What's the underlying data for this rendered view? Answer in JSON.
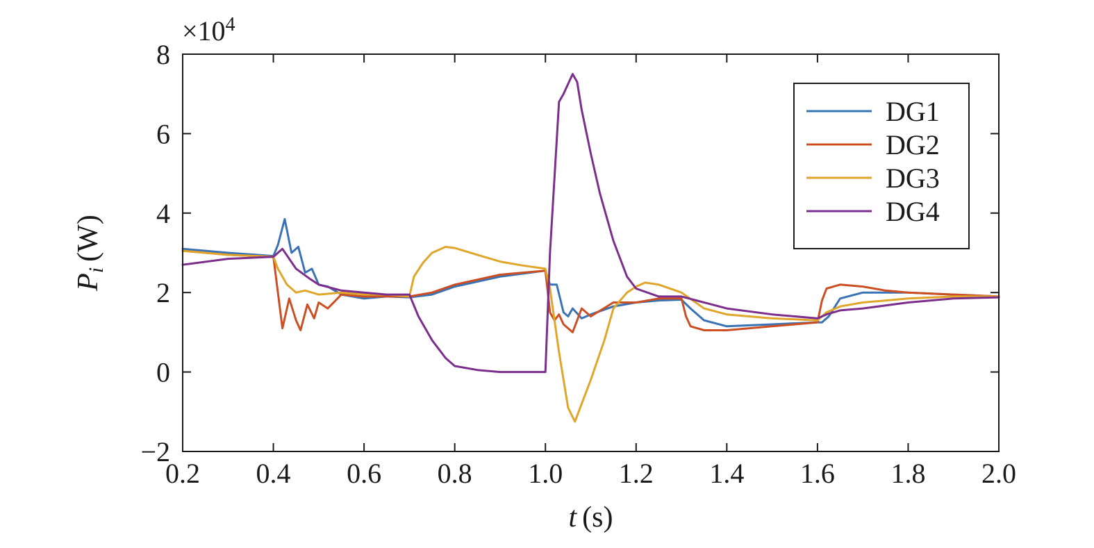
{
  "chart_data": {
    "type": "line",
    "title": "",
    "xlabel": {
      "symbol": "t",
      "unit": "(s)"
    },
    "ylabel": {
      "symbol": "P",
      "subscript": "i",
      "unit": "(W)"
    },
    "y_multiplier": {
      "base": "×10",
      "exponent": "4"
    },
    "xlim": [
      0.2,
      2.0
    ],
    "ylim": [
      -2,
      8
    ],
    "x_ticks": [
      0.2,
      0.4,
      0.6,
      0.8,
      1.0,
      1.2,
      1.4,
      1.6,
      1.8,
      2.0
    ],
    "x_tick_labels": [
      "0.2",
      "0.4",
      "0.6",
      "0.8",
      "1.0",
      "1.2",
      "1.4",
      "1.6",
      "1.8",
      "2.0"
    ],
    "y_ticks": [
      -2,
      0,
      2,
      4,
      6,
      8
    ],
    "y_tick_labels": [
      "−2",
      "0",
      "2",
      "4",
      "6",
      "8"
    ],
    "grid": false,
    "legend_position": "top-right",
    "series": [
      {
        "name": "DG1",
        "color": "#3a73b5",
        "points": [
          [
            0.2,
            3.1
          ],
          [
            0.3,
            3.0
          ],
          [
            0.4,
            2.92
          ],
          [
            0.41,
            3.2
          ],
          [
            0.425,
            3.85
          ],
          [
            0.44,
            3.0
          ],
          [
            0.455,
            3.15
          ],
          [
            0.47,
            2.5
          ],
          [
            0.485,
            2.6
          ],
          [
            0.5,
            2.2
          ],
          [
            0.52,
            2.15
          ],
          [
            0.55,
            1.95
          ],
          [
            0.6,
            1.85
          ],
          [
            0.65,
            1.9
          ],
          [
            0.7,
            1.88
          ],
          [
            0.75,
            1.95
          ],
          [
            0.8,
            2.15
          ],
          [
            0.9,
            2.4
          ],
          [
            1.0,
            2.55
          ],
          [
            1.01,
            2.2
          ],
          [
            1.025,
            2.2
          ],
          [
            1.04,
            1.5
          ],
          [
            1.05,
            1.4
          ],
          [
            1.06,
            1.6
          ],
          [
            1.08,
            1.35
          ],
          [
            1.1,
            1.45
          ],
          [
            1.15,
            1.65
          ],
          [
            1.2,
            1.75
          ],
          [
            1.25,
            1.8
          ],
          [
            1.3,
            1.82
          ],
          [
            1.32,
            1.6
          ],
          [
            1.35,
            1.3
          ],
          [
            1.4,
            1.15
          ],
          [
            1.5,
            1.2
          ],
          [
            1.6,
            1.25
          ],
          [
            1.61,
            1.25
          ],
          [
            1.625,
            1.4
          ],
          [
            1.65,
            1.85
          ],
          [
            1.7,
            2.0
          ],
          [
            1.8,
            2.0
          ],
          [
            1.9,
            1.95
          ],
          [
            2.0,
            1.9
          ]
        ]
      },
      {
        "name": "DG2",
        "color": "#cc4f23",
        "points": [
          [
            0.2,
            3.05
          ],
          [
            0.3,
            2.95
          ],
          [
            0.4,
            2.9
          ],
          [
            0.41,
            2.0
          ],
          [
            0.42,
            1.1
          ],
          [
            0.435,
            1.85
          ],
          [
            0.45,
            1.3
          ],
          [
            0.46,
            1.05
          ],
          [
            0.475,
            1.7
          ],
          [
            0.49,
            1.35
          ],
          [
            0.5,
            1.75
          ],
          [
            0.52,
            1.6
          ],
          [
            0.55,
            1.95
          ],
          [
            0.6,
            1.9
          ],
          [
            0.65,
            1.9
          ],
          [
            0.7,
            1.9
          ],
          [
            0.75,
            2.0
          ],
          [
            0.8,
            2.2
          ],
          [
            0.9,
            2.45
          ],
          [
            1.0,
            2.55
          ],
          [
            1.01,
            1.5
          ],
          [
            1.02,
            1.3
          ],
          [
            1.03,
            1.45
          ],
          [
            1.04,
            1.2
          ],
          [
            1.06,
            1.0
          ],
          [
            1.08,
            1.6
          ],
          [
            1.1,
            1.4
          ],
          [
            1.15,
            1.75
          ],
          [
            1.2,
            1.75
          ],
          [
            1.25,
            1.85
          ],
          [
            1.3,
            1.85
          ],
          [
            1.31,
            1.4
          ],
          [
            1.32,
            1.15
          ],
          [
            1.35,
            1.05
          ],
          [
            1.4,
            1.05
          ],
          [
            1.5,
            1.15
          ],
          [
            1.6,
            1.25
          ],
          [
            1.61,
            1.8
          ],
          [
            1.62,
            2.1
          ],
          [
            1.65,
            2.2
          ],
          [
            1.7,
            2.15
          ],
          [
            1.75,
            2.05
          ],
          [
            1.8,
            2.0
          ],
          [
            1.9,
            1.95
          ],
          [
            2.0,
            1.9
          ]
        ]
      },
      {
        "name": "DG3",
        "color": "#e0a62b",
        "points": [
          [
            0.2,
            3.05
          ],
          [
            0.3,
            2.95
          ],
          [
            0.4,
            2.9
          ],
          [
            0.41,
            2.6
          ],
          [
            0.43,
            2.2
          ],
          [
            0.45,
            2.0
          ],
          [
            0.47,
            2.05
          ],
          [
            0.5,
            1.95
          ],
          [
            0.55,
            2.0
          ],
          [
            0.6,
            1.95
          ],
          [
            0.65,
            1.95
          ],
          [
            0.7,
            1.9
          ],
          [
            0.71,
            2.4
          ],
          [
            0.73,
            2.75
          ],
          [
            0.75,
            3.0
          ],
          [
            0.78,
            3.15
          ],
          [
            0.8,
            3.12
          ],
          [
            0.85,
            2.95
          ],
          [
            0.9,
            2.78
          ],
          [
            0.95,
            2.68
          ],
          [
            1.0,
            2.6
          ],
          [
            1.01,
            2.1
          ],
          [
            1.03,
            0.5
          ],
          [
            1.05,
            -0.9
          ],
          [
            1.065,
            -1.25
          ],
          [
            1.08,
            -0.8
          ],
          [
            1.1,
            -0.2
          ],
          [
            1.13,
            0.8
          ],
          [
            1.15,
            1.6
          ],
          [
            1.18,
            2.0
          ],
          [
            1.2,
            2.15
          ],
          [
            1.22,
            2.25
          ],
          [
            1.25,
            2.2
          ],
          [
            1.3,
            2.0
          ],
          [
            1.35,
            1.6
          ],
          [
            1.4,
            1.45
          ],
          [
            1.5,
            1.35
          ],
          [
            1.6,
            1.3
          ],
          [
            1.62,
            1.5
          ],
          [
            1.65,
            1.65
          ],
          [
            1.7,
            1.75
          ],
          [
            1.8,
            1.85
          ],
          [
            1.9,
            1.9
          ],
          [
            2.0,
            1.9
          ]
        ]
      },
      {
        "name": "DG4",
        "color": "#7c2e8c",
        "points": [
          [
            0.2,
            2.7
          ],
          [
            0.3,
            2.85
          ],
          [
            0.4,
            2.9
          ],
          [
            0.42,
            3.1
          ],
          [
            0.45,
            2.6
          ],
          [
            0.48,
            2.35
          ],
          [
            0.5,
            2.2
          ],
          [
            0.55,
            2.05
          ],
          [
            0.6,
            2.0
          ],
          [
            0.65,
            1.95
          ],
          [
            0.7,
            1.95
          ],
          [
            0.72,
            1.4
          ],
          [
            0.75,
            0.8
          ],
          [
            0.78,
            0.35
          ],
          [
            0.8,
            0.15
          ],
          [
            0.85,
            0.05
          ],
          [
            0.9,
            0.0
          ],
          [
            0.95,
            0.0
          ],
          [
            1.0,
            0.0
          ],
          [
            1.01,
            3.0
          ],
          [
            1.03,
            6.8
          ],
          [
            1.04,
            7.0
          ],
          [
            1.06,
            7.5
          ],
          [
            1.07,
            7.3
          ],
          [
            1.08,
            6.6
          ],
          [
            1.1,
            5.5
          ],
          [
            1.12,
            4.5
          ],
          [
            1.15,
            3.3
          ],
          [
            1.18,
            2.4
          ],
          [
            1.2,
            2.1
          ],
          [
            1.25,
            1.9
          ],
          [
            1.3,
            1.9
          ],
          [
            1.35,
            1.75
          ],
          [
            1.4,
            1.6
          ],
          [
            1.5,
            1.45
          ],
          [
            1.6,
            1.35
          ],
          [
            1.62,
            1.45
          ],
          [
            1.65,
            1.55
          ],
          [
            1.7,
            1.6
          ],
          [
            1.8,
            1.75
          ],
          [
            1.9,
            1.85
          ],
          [
            2.0,
            1.88
          ]
        ]
      }
    ]
  }
}
